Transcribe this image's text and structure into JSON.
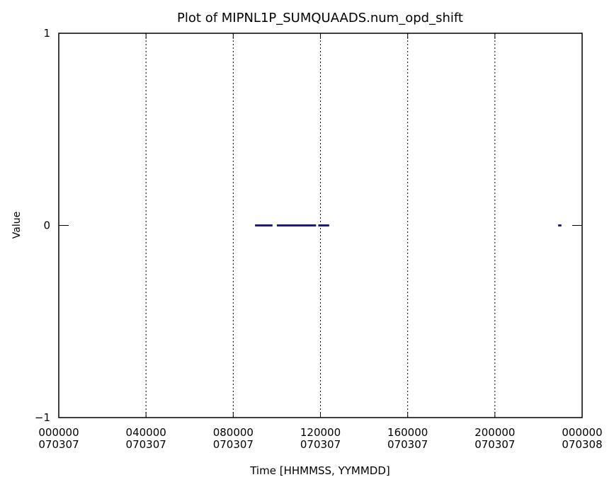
{
  "chart_data": {
    "type": "scatter",
    "title": "Plot of MIPNL1P_SUMQUAADS.num_opd_shift",
    "xlabel": "Time [HHMMSS, YYMMDD]",
    "ylabel": "Value",
    "xlim_hours": [
      0,
      24
    ],
    "ylim": [
      -1,
      1
    ],
    "grid": "vertical dotted lines at major x ticks",
    "series_color": "#1a1a8c",
    "x_ticks": [
      {
        "hour": 0,
        "label_time": "000000",
        "label_date": "070307"
      },
      {
        "hour": 4,
        "label_time": "040000",
        "label_date": "070307"
      },
      {
        "hour": 8,
        "label_time": "080000",
        "label_date": "070307"
      },
      {
        "hour": 12,
        "label_time": "120000",
        "label_date": "070307"
      },
      {
        "hour": 16,
        "label_time": "160000",
        "label_date": "070307"
      },
      {
        "hour": 20,
        "label_time": "200000",
        "label_date": "070307"
      },
      {
        "hour": 24,
        "label_time": "000000",
        "label_date": "070308"
      }
    ],
    "y_ticks": [
      {
        "value": 1,
        "label": "1"
      },
      {
        "value": 0,
        "label": "0"
      },
      {
        "value": -1,
        "label": "−1"
      }
    ],
    "segments": [
      {
        "x_start_hours": 9.0,
        "x_end_hours": 9.8,
        "y": 0
      },
      {
        "x_start_hours": 10.0,
        "x_end_hours": 11.8,
        "y": 0
      },
      {
        "x_start_hours": 11.9,
        "x_end_hours": 12.4,
        "y": 0
      },
      {
        "x_start_hours": 22.9,
        "x_end_hours": 23.05,
        "y": 0
      }
    ]
  }
}
